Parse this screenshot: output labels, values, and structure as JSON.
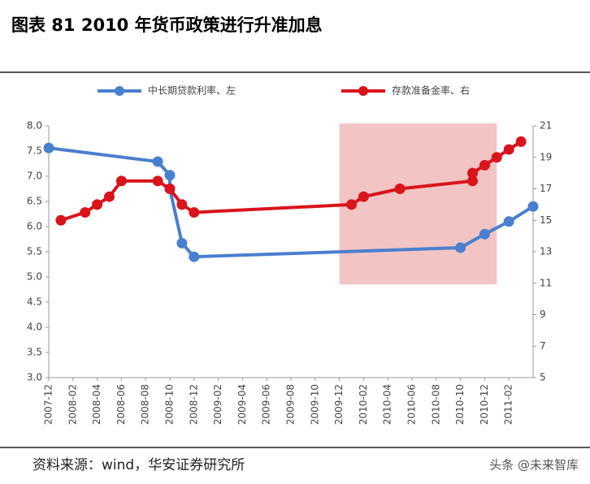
{
  "chart_data": {
    "type": "line",
    "title": "图表 81 2010 年货币政策进行升准加息",
    "source": "资料来源：wind，华安证券研究所",
    "watermark": "头条 @未来智库",
    "xlim": [
      "2007-12",
      "2011-04"
    ],
    "xticks": [
      "2007-12",
      "2008-02",
      "2008-04",
      "2008-06",
      "2008-08",
      "2008-10",
      "2008-12",
      "2009-02",
      "2009-04",
      "2009-06",
      "2009-08",
      "2009-10",
      "2009-12",
      "2010-02",
      "2010-04",
      "2010-06",
      "2010-08",
      "2010-10",
      "2010-12",
      "2011-02"
    ],
    "ylim": [
      3.0,
      8.0
    ],
    "yticks": [
      {
        "value": 3.0,
        "label": "3.0"
      },
      {
        "value": 3.5,
        "label": "3.5"
      },
      {
        "value": 4.0,
        "label": "4.0"
      },
      {
        "value": 4.5,
        "label": "4.5"
      },
      {
        "value": 5.0,
        "label": "5.0"
      },
      {
        "value": 5.5,
        "label": "5.5"
      },
      {
        "value": 6.0,
        "label": "6.0"
      },
      {
        "value": 6.5,
        "label": "6.5"
      },
      {
        "value": 7.0,
        "label": "7.0"
      },
      {
        "value": 7.5,
        "label": "7.5"
      },
      {
        "value": 8.0,
        "label": "8.0"
      }
    ],
    "y2lim": [
      5,
      21
    ],
    "y2ticks": [
      5,
      7,
      9,
      11,
      13,
      15,
      17,
      19,
      21
    ],
    "grid": false,
    "legend": "top",
    "highlight": {
      "x": [
        "2009-12",
        "2011-01"
      ],
      "y": [
        4.85,
        8.05
      ],
      "color": "#f2c4c4"
    },
    "series": [
      {
        "name": "中长期贷款利率、左",
        "color": "#4a7fd0",
        "axis": "y",
        "x": [
          "2007-12",
          "2008-09",
          "2008-10",
          "2008-10",
          "2008-11",
          "2008-12",
          "2010-10",
          "2010-12",
          "2011-02",
          "2011-04"
        ],
        "values": [
          7.56,
          7.29,
          7.02,
          6.75,
          5.67,
          5.4,
          5.58,
          5.85,
          6.1,
          6.4
        ]
      },
      {
        "name": "存款准备金率、右",
        "color": "#d9141c",
        "axis": "y2",
        "x": [
          "2008-01",
          "2008-03",
          "2008-04",
          "2008-05",
          "2008-06",
          "2008-09",
          "2008-10",
          "2008-11",
          "2008-12",
          "2010-01",
          "2010-02",
          "2010-05",
          "2010-11",
          "2010-11",
          "2010-12",
          "2011-01",
          "2011-02",
          "2011-03"
        ],
        "values": [
          15,
          15.5,
          16,
          16.5,
          17.5,
          17.5,
          17,
          16,
          15.5,
          16,
          16.5,
          17,
          17.5,
          18,
          18.5,
          19,
          19.5,
          20
        ]
      }
    ]
  }
}
